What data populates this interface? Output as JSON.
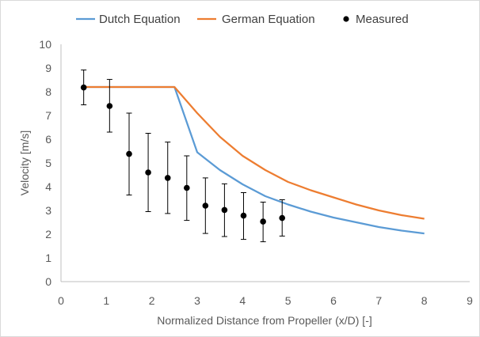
{
  "chart_data": {
    "type": "line",
    "xlabel": "Normalized Distance from Propeller (x/D) [-]",
    "ylabel": "Velocity [m/s]",
    "xlim": [
      0,
      9
    ],
    "ylim": [
      0,
      10
    ],
    "xticks": [
      "0",
      "1",
      "2",
      "3",
      "4",
      "5",
      "6",
      "7",
      "8",
      "9"
    ],
    "yticks": [
      "0",
      "1",
      "2",
      "3",
      "4",
      "5",
      "6",
      "7",
      "8",
      "9",
      "10"
    ],
    "grid": false,
    "legend_position": "top",
    "series": [
      {
        "name": "Dutch Equation",
        "kind": "line",
        "color": "#5B9BD5",
        "x": [
          0.5,
          2.5,
          3.0,
          3.5,
          4.0,
          4.5,
          5.0,
          5.5,
          6.0,
          6.5,
          7.0,
          7.5,
          8.0
        ],
        "y": [
          8.2,
          8.2,
          5.45,
          4.7,
          4.1,
          3.6,
          3.25,
          2.95,
          2.7,
          2.5,
          2.3,
          2.15,
          2.03
        ]
      },
      {
        "name": "German Equation",
        "kind": "line",
        "color": "#ED7D31",
        "x": [
          0.5,
          2.5,
          3.0,
          3.5,
          4.0,
          4.5,
          5.0,
          5.5,
          6.0,
          6.5,
          7.0,
          7.5,
          8.0
        ],
        "y": [
          8.2,
          8.2,
          7.1,
          6.1,
          5.3,
          4.7,
          4.2,
          3.85,
          3.55,
          3.25,
          3.0,
          2.8,
          2.65
        ]
      },
      {
        "name": "Measured",
        "kind": "scatter",
        "color": "#000000",
        "x": [
          0.5,
          1.07,
          1.5,
          1.92,
          2.35,
          2.77,
          3.18,
          3.6,
          4.02,
          4.45,
          4.87
        ],
        "y": [
          8.18,
          7.4,
          5.38,
          4.6,
          4.37,
          3.95,
          3.2,
          3.02,
          2.78,
          2.53,
          2.68
        ],
        "error_low": [
          7.45,
          6.3,
          3.65,
          2.95,
          2.87,
          2.58,
          2.03,
          1.9,
          1.78,
          1.68,
          1.92
        ],
        "error_high": [
          8.92,
          8.52,
          7.1,
          6.25,
          5.88,
          5.3,
          4.37,
          4.12,
          3.75,
          3.35,
          3.45
        ]
      }
    ]
  }
}
